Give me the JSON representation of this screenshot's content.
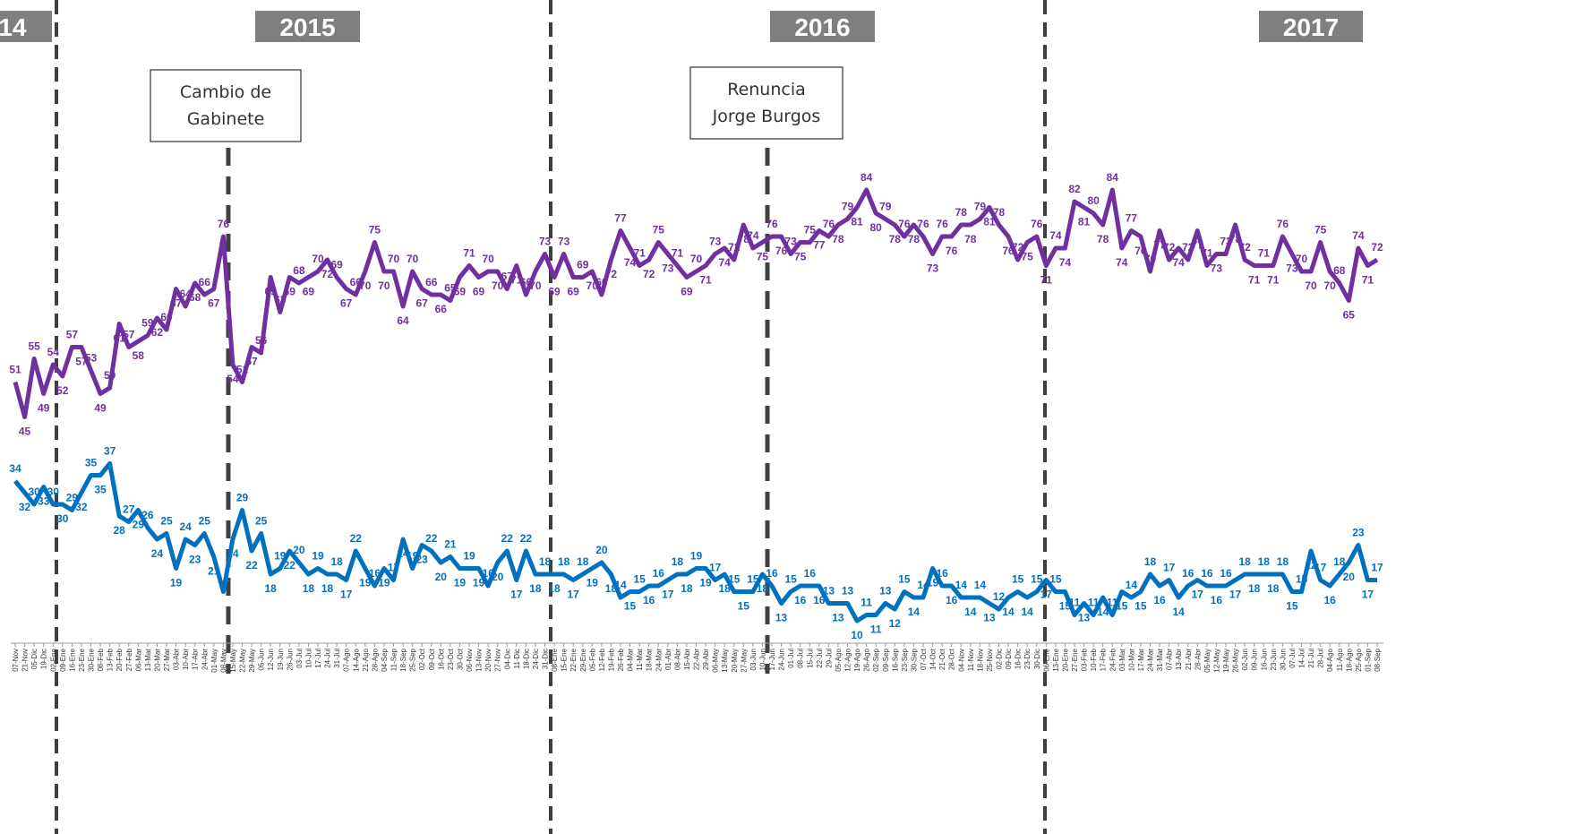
{
  "chart_data": {
    "type": "line",
    "year_labels": [
      "14",
      "2015",
      "2016",
      "2017"
    ],
    "annotations": [
      [
        "Cambio de",
        "Gabinete"
      ],
      [
        "Renuncia",
        "Jorge Burgos"
      ]
    ],
    "categories": [
      "07-Nov",
      "21-Nov",
      "05-Dic",
      "19-Dic",
      "02-Ene",
      "09-Ene",
      "16-Ene",
      "23-Ene",
      "30-Ene",
      "06-Feb",
      "13-Feb",
      "20-Feb",
      "27-Feb",
      "06-Mar",
      "13-Mar",
      "20-Mar",
      "27-Mar",
      "03-Abr",
      "10-Abr",
      "17-Abr",
      "24-Abr",
      "01-May",
      "08-May",
      "15-May",
      "22-May",
      "29-May",
      "05-Jun",
      "12-Jun",
      "19-Jun",
      "26-Jun",
      "03-Jul",
      "10-Jul",
      "17-Jul",
      "24-Jul",
      "31-Jul",
      "07-Ago",
      "14-Ago",
      "21-Ago",
      "28-Ago",
      "04-Sep",
      "11-Sep",
      "18-Sep",
      "25-Sep",
      "02-Oct",
      "09-Oct",
      "16-Oct",
      "23-Oct",
      "30-Oct",
      "06-Nov",
      "13-Nov",
      "20-Nov",
      "27-Nov",
      "04-Dic",
      "11-Dic",
      "18-Dic",
      "24-Dic",
      "31-Dic",
      "08-Ene",
      "15-Ene",
      "22-Ene",
      "29-Ene",
      "05-Feb",
      "12-Feb",
      "19-Feb",
      "26-Feb",
      "04-Mar",
      "11-Mar",
      "18-Mar",
      "24-Mar",
      "01-Abr",
      "08-Abr",
      "15-Abr",
      "22-Abr",
      "29-Abr",
      "06-May",
      "13-May",
      "20-May",
      "27-May",
      "03-Jun",
      "10-Jun",
      "17-Jun",
      "24-Jun",
      "01-Jul",
      "08-Jul",
      "15-Jul",
      "22-Jul",
      "29-Jul",
      "05-Ago",
      "12-Ago",
      "19-Ago",
      "26-Ago",
      "02-Sep",
      "09-Sep",
      "16-Sep",
      "23-Sep",
      "30-Sep",
      "07-Oct",
      "14-Oct",
      "21-Oct",
      "28-Oct",
      "04-Nov",
      "11-Nov",
      "18-Nov",
      "25-Nov",
      "02-Dic",
      "09-Dic",
      "16-Dic",
      "23-Dic",
      "30-Dic",
      "06-Ene",
      "13-Ene",
      "20-Ene",
      "27-Ene",
      "03-Feb",
      "10-Feb",
      "17-Feb",
      "24-Feb",
      "03-Mar",
      "10-Mar",
      "17-Mar",
      "24-Mar",
      "31-Mar",
      "07-Abr",
      "13-Abr",
      "21-Abr",
      "28-Abr",
      "05-May",
      "12-May",
      "19-May",
      "26-May",
      "02-Jun",
      "09-Jun",
      "16-Jun",
      "23-Jun",
      "30-Jun",
      "07-Jul",
      "14-Jul",
      "21-Jul",
      "28-Jul",
      "04-Ago",
      "11-Ago",
      "18-Ago",
      "25-Ago",
      "01-Sep",
      "08-Sep"
    ],
    "series": [
      {
        "color": "#7030a0",
        "values": [
          51,
          45,
          55,
          49,
          54,
          52,
          57,
          57,
          53,
          49,
          50,
          61,
          57,
          58,
          59,
          62,
          60,
          67,
          64,
          68,
          66,
          67,
          76,
          54,
          51,
          57,
          56,
          69,
          63,
          69,
          68,
          69,
          70,
          72,
          69,
          67,
          66,
          70,
          75,
          70,
          70,
          64,
          70,
          67,
          66,
          66,
          65,
          69,
          71,
          69,
          70,
          70,
          67,
          71,
          66,
          70,
          73,
          69,
          73,
          69,
          69,
          70,
          66,
          72,
          77,
          74,
          71,
          72,
          75,
          73,
          71,
          69,
          70,
          71,
          73,
          74,
          72,
          78,
          74,
          75,
          76,
          76,
          73,
          75,
          75,
          77,
          76,
          78,
          79,
          81,
          84,
          80,
          79,
          78,
          76,
          78,
          76,
          73,
          76,
          76,
          78,
          78,
          79,
          81,
          78,
          76,
          72,
          75,
          76,
          71,
          74,
          74,
          82,
          81,
          80,
          78,
          84,
          74,
          77,
          76,
          70,
          77,
          72,
          74,
          72,
          77,
          71,
          73,
          73,
          78,
          72,
          71,
          71,
          71,
          76,
          73,
          70,
          70,
          75,
          70,
          68,
          65,
          74,
          71,
          72
        ]
      },
      {
        "color": "#0070c0",
        "values": [
          34,
          32,
          30,
          33,
          30,
          30,
          29,
          32,
          35,
          35,
          37,
          28,
          27,
          29,
          26,
          24,
          25,
          19,
          24,
          23,
          25,
          21,
          15,
          24,
          29,
          22,
          25,
          18,
          19,
          22,
          20,
          18,
          19,
          18,
          18,
          17,
          22,
          19,
          16,
          19,
          17,
          24,
          19,
          23,
          22,
          20,
          21,
          19,
          19,
          19,
          16,
          20,
          22,
          17,
          22,
          18,
          18,
          18,
          18,
          17,
          18,
          19,
          20,
          18,
          14,
          15,
          15,
          16,
          16,
          17,
          18,
          18,
          19,
          19,
          17,
          18,
          15,
          15,
          15,
          18,
          16,
          13,
          15,
          16,
          16,
          16,
          13,
          13,
          13,
          10,
          11,
          11,
          13,
          12,
          15,
          14,
          14,
          19,
          16,
          16,
          14,
          14,
          14,
          13,
          12,
          14,
          15,
          14,
          15,
          17,
          15,
          15,
          11,
          13,
          11,
          14,
          11,
          15,
          14,
          15,
          18,
          16,
          17,
          14,
          16,
          17,
          16,
          16,
          16,
          17,
          18,
          18,
          18,
          18,
          18,
          15,
          15,
          22,
          17,
          16,
          18,
          20,
          23,
          17,
          17
        ]
      }
    ]
  }
}
